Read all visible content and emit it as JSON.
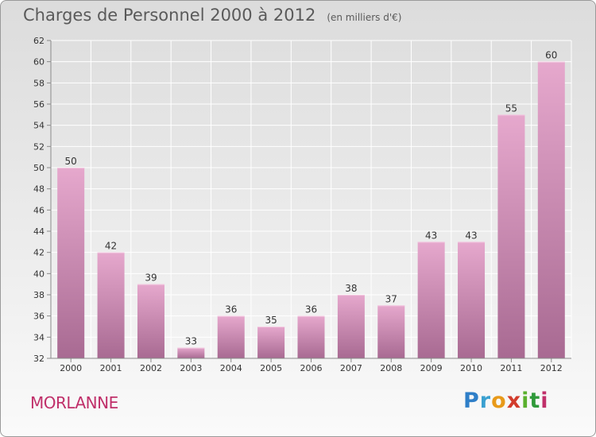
{
  "header": {
    "title": "Charges de Personnel 2000 à 2012",
    "subtitle": "(en milliers d'€)"
  },
  "town": "MORLANNE",
  "logo": {
    "text": "Proxiti"
  },
  "colors": {
    "bar_top": "#e6a8cd",
    "bar_bottom": "#a86a92",
    "axis": "#8a8a8a",
    "grid": "#ffffff",
    "label": "#333333",
    "town": "#c0306a"
  },
  "chart_data": {
    "type": "bar",
    "categories": [
      "2000",
      "2001",
      "2002",
      "2003",
      "2004",
      "2005",
      "2006",
      "2007",
      "2008",
      "2009",
      "2010",
      "2011",
      "2012"
    ],
    "values": [
      50,
      42,
      39,
      33,
      36,
      35,
      36,
      38,
      37,
      43,
      43,
      55,
      60
    ],
    "ylim": [
      32,
      62
    ],
    "yticks": [
      32,
      34,
      36,
      38,
      40,
      42,
      44,
      46,
      48,
      50,
      52,
      54,
      56,
      58,
      60,
      62
    ],
    "grid": true,
    "data_labels": true
  }
}
